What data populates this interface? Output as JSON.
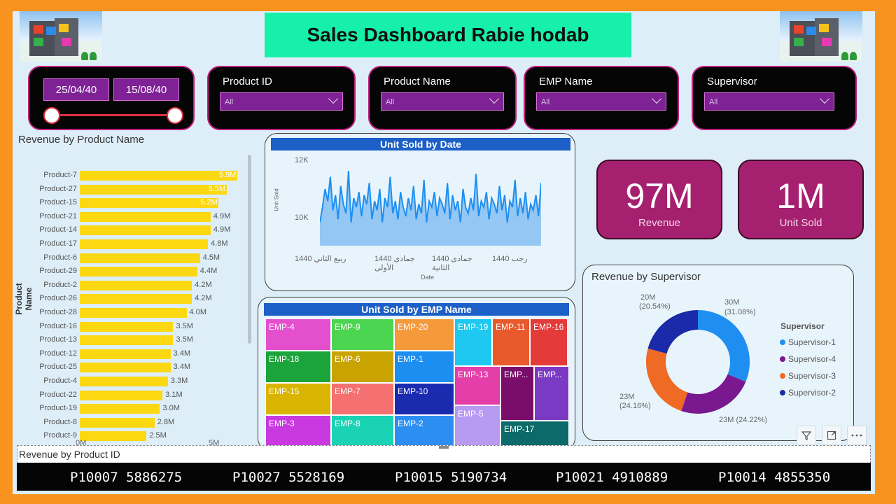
{
  "header": {
    "title": "Sales Dashboard Rabie hodab"
  },
  "date_slicer": {
    "start": "25/04/40",
    "end": "15/08/40"
  },
  "slicers": [
    {
      "label": "Product ID",
      "value": "All"
    },
    {
      "label": "Product Name",
      "value": "All"
    },
    {
      "label": "EMP Name",
      "value": "All"
    },
    {
      "label": "Supervisor",
      "value": "All"
    }
  ],
  "revenue_by_product": {
    "title": "Revenue by Product Name",
    "ylabel": "Product Name",
    "axis_ticks": [
      "0M",
      "5M"
    ],
    "items": [
      {
        "name": "Product-7",
        "label": "5.9M",
        "value": 5.9
      },
      {
        "name": "Product-27",
        "label": "5.5M",
        "value": 5.5
      },
      {
        "name": "Product-15",
        "label": "5.2M",
        "value": 5.2
      },
      {
        "name": "Product-21",
        "label": "4.9M",
        "value": 4.9
      },
      {
        "name": "Product-14",
        "label": "4.9M",
        "value": 4.9
      },
      {
        "name": "Product-17",
        "label": "4.8M",
        "value": 4.8
      },
      {
        "name": "Product-6",
        "label": "4.5M",
        "value": 4.5
      },
      {
        "name": "Product-29",
        "label": "4.4M",
        "value": 4.4
      },
      {
        "name": "Product-2",
        "label": "4.2M",
        "value": 4.2
      },
      {
        "name": "Product-26",
        "label": "4.2M",
        "value": 4.2
      },
      {
        "name": "Product-28",
        "label": "4.0M",
        "value": 4.0
      },
      {
        "name": "Product-16",
        "label": "3.5M",
        "value": 3.5
      },
      {
        "name": "Product-13",
        "label": "3.5M",
        "value": 3.5
      },
      {
        "name": "Product-12",
        "label": "3.4M",
        "value": 3.4
      },
      {
        "name": "Product-25",
        "label": "3.4M",
        "value": 3.4
      },
      {
        "name": "Product-4",
        "label": "3.3M",
        "value": 3.3
      },
      {
        "name": "Product-22",
        "label": "3.1M",
        "value": 3.1
      },
      {
        "name": "Product-19",
        "label": "3.0M",
        "value": 3.0
      },
      {
        "name": "Product-8",
        "label": "2.8M",
        "value": 2.8
      },
      {
        "name": "Product-9",
        "label": "2.5M",
        "value": 2.5
      }
    ]
  },
  "unit_sold_by_date": {
    "title": "Unit Sold by Date",
    "ylabel": "Unit Sold",
    "xlabel": "Date",
    "y_ticks": [
      "12K",
      "10K"
    ],
    "x_ticks": [
      "1440 ربيع الثاني",
      "1440 جمادى الأولى",
      "1440 جمادى الثانية",
      "1440 رجب"
    ]
  },
  "kpis": [
    {
      "value": "97M",
      "label": "Revenue"
    },
    {
      "value": "1M",
      "label": "Unit Sold"
    }
  ],
  "unit_sold_by_emp": {
    "title": "Unit Sold by EMP Name",
    "tiles": [
      "EMP-4",
      "EMP-9",
      "EMP-20",
      "EMP-19",
      "EMP-11",
      "EMP-16",
      "EMP-18",
      "EMP-6",
      "EMP-1",
      "EMP-13",
      "EMP...",
      "EMP...",
      "EMP-15",
      "EMP-7",
      "EMP-10",
      "EMP-5",
      "EMP-17",
      "EMP-3",
      "EMP-8",
      "EMP-2"
    ],
    "colors": [
      "#e44fcd",
      "#4cd550",
      "#f49a3b",
      "#1ec8f0",
      "#e85a2b",
      "#e43a3a",
      "#1aa43a",
      "#c9a400",
      "#1b8ef0",
      "#e43ea8",
      "#7a0d6a",
      "#7b3ac4",
      "#d9b400",
      "#f57070",
      "#1a2bb0",
      "#b79af2",
      "#0d6a6a",
      "#c83ae0",
      "#19d3b4",
      "#2d8ef2"
    ]
  },
  "revenue_by_supervisor": {
    "title": "Revenue by Supervisor",
    "legend_title": "Supervisor",
    "legend": [
      "Supervisor-1",
      "Supervisor-4",
      "Supervisor-3",
      "Supervisor-2"
    ],
    "slice_labels": [
      "30M",
      "(31.08%)",
      "23M (24.22%)",
      "23M",
      "(24.16%)",
      "20M",
      "(20.54%)"
    ]
  },
  "ticker": {
    "title": "Revenue by Product ID",
    "items": [
      "P10007  5886275",
      "P10027  5528169",
      "P10015  5190734",
      "P10021  4910889",
      "P10014  4855350"
    ]
  },
  "chart_data": [
    {
      "type": "bar",
      "title": "Revenue by Product Name",
      "ylabel": "Product Name",
      "categories": [
        "Product-7",
        "Product-27",
        "Product-15",
        "Product-21",
        "Product-14",
        "Product-17",
        "Product-6",
        "Product-29",
        "Product-2",
        "Product-26",
        "Product-28",
        "Product-16",
        "Product-13",
        "Product-12",
        "Product-25",
        "Product-4",
        "Product-22",
        "Product-19",
        "Product-8",
        "Product-9"
      ],
      "values": [
        5.9,
        5.5,
        5.2,
        4.9,
        4.9,
        4.8,
        4.5,
        4.4,
        4.2,
        4.2,
        4.0,
        3.5,
        3.5,
        3.4,
        3.4,
        3.3,
        3.1,
        3.0,
        2.8,
        2.5
      ],
      "unit": "M"
    },
    {
      "type": "area",
      "title": "Unit Sold by Date",
      "ylabel": "Unit Sold",
      "xlabel": "Date",
      "ylim": [
        9000,
        12000
      ],
      "values": [
        10000,
        10500,
        11100,
        10700,
        11500,
        10400,
        10900,
        10100,
        11200,
        10600,
        10300,
        11700,
        10000,
        10800,
        10500,
        11000,
        10200,
        10900,
        10600,
        11300,
        10100,
        10700,
        10400,
        11100,
        10000,
        10800,
        10500,
        11500,
        10300,
        10700,
        10100,
        11000,
        10500,
        10200,
        10800,
        10400,
        11200,
        10100,
        10600,
        10300,
        11400,
        10000,
        10700,
        10500,
        11000,
        10200,
        10800,
        10600,
        10300,
        11300,
        10100,
        10900,
        10400,
        10700,
        10000,
        11100,
        10500,
        10300,
        10800,
        10400,
        11600,
        10200,
        10700,
        10500,
        11000,
        10100,
        10800,
        10600,
        10300,
        11200,
        10400,
        10900,
        10000,
        10700,
        10500,
        11400,
        10200,
        10800,
        10300,
        11000,
        10100,
        10600,
        10400,
        10900,
        10200,
        11300
      ]
    },
    {
      "type": "pie",
      "title": "Revenue by Supervisor",
      "categories": [
        "Supervisor-1",
        "Supervisor-4",
        "Supervisor-3",
        "Supervisor-2"
      ],
      "values": [
        30,
        23,
        23,
        20
      ],
      "percent": [
        31.08,
        24.22,
        24.16,
        20.54
      ],
      "colors": [
        "#1e8ff0",
        "#7a1890",
        "#ef6a24",
        "#1a2aa8"
      ]
    }
  ]
}
